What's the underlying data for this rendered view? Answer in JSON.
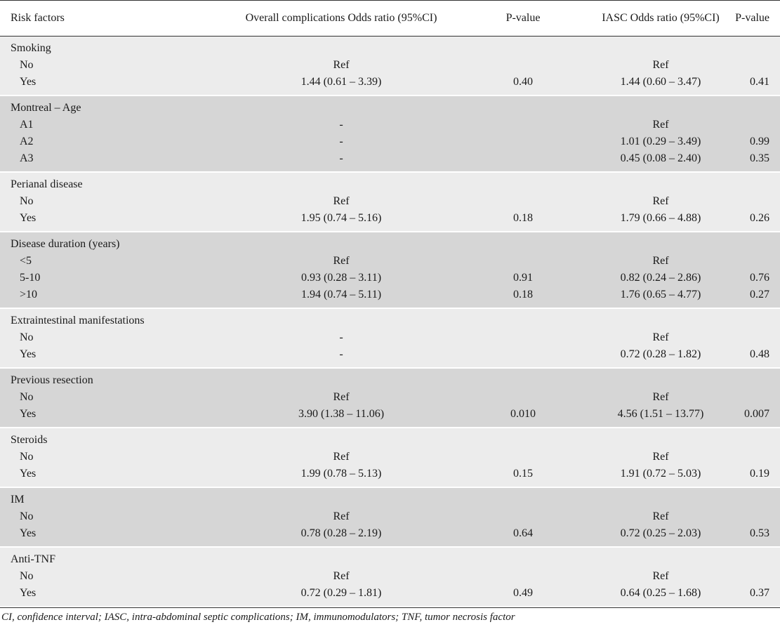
{
  "headers": {
    "risk_factors": "Risk factors",
    "overall_or": "Overall complications Odds ratio (95%CI)",
    "p_value_1": "P-value",
    "iasc_or": "IASC Odds ratio (95%CI)",
    "p_value_2": "P-value"
  },
  "groups": [
    {
      "label": "Smoking",
      "rows": [
        {
          "label": "No",
          "or1": "Ref",
          "p1": "",
          "or2": "Ref",
          "p2": ""
        },
        {
          "label": "Yes",
          "or1": "1.44 (0.61 – 3.39)",
          "p1": "0.40",
          "or2": "1.44 (0.60 – 3.47)",
          "p2": "0.41"
        }
      ]
    },
    {
      "label": "Montreal – Age",
      "rows": [
        {
          "label": "A1",
          "or1": "-",
          "p1": "",
          "or2": "Ref",
          "p2": ""
        },
        {
          "label": "A2",
          "or1": "-",
          "p1": "",
          "or2": "1.01 (0.29 – 3.49)",
          "p2": "0.99"
        },
        {
          "label": "A3",
          "or1": "-",
          "p1": "",
          "or2": "0.45 (0.08 – 2.40)",
          "p2": "0.35"
        }
      ]
    },
    {
      "label": "Perianal disease",
      "rows": [
        {
          "label": "No",
          "or1": "Ref",
          "p1": "",
          "or2": "Ref",
          "p2": ""
        },
        {
          "label": "Yes",
          "or1": "1.95 (0.74 – 5.16)",
          "p1": "0.18",
          "or2": "1.79 (0.66 – 4.88)",
          "p2": "0.26"
        }
      ]
    },
    {
      "label": "Disease duration (years)",
      "rows": [
        {
          "label": "<5",
          "or1": "Ref",
          "p1": "",
          "or2": "Ref",
          "p2": ""
        },
        {
          "label": "5-10",
          "or1": "0.93 (0.28 – 3.11)",
          "p1": "0.91",
          "or2": "0.82 (0.24 – 2.86)",
          "p2": "0.76"
        },
        {
          "label": ">10",
          "or1": "1.94 (0.74 – 5.11)",
          "p1": "0.18",
          "or2": "1.76 (0.65 – 4.77)",
          "p2": "0.27"
        }
      ]
    },
    {
      "label": "Extraintestinal manifestations",
      "rows": [
        {
          "label": "No",
          "or1": "-",
          "p1": "",
          "or2": "Ref",
          "p2": ""
        },
        {
          "label": "Yes",
          "or1": "-",
          "p1": "",
          "or2": "0.72 (0.28 – 1.82)",
          "p2": "0.48"
        }
      ]
    },
    {
      "label": "Previous resection",
      "rows": [
        {
          "label": "No",
          "or1": "Ref",
          "p1": "",
          "or2": "Ref",
          "p2": ""
        },
        {
          "label": "Yes",
          "or1": "3.90 (1.38 – 11.06)",
          "p1": "0.010",
          "or2": "4.56 (1.51 – 13.77)",
          "p2": "0.007"
        }
      ]
    },
    {
      "label": "Steroids",
      "rows": [
        {
          "label": "No",
          "or1": "Ref",
          "p1": "",
          "or2": "Ref",
          "p2": ""
        },
        {
          "label": "Yes",
          "or1": "1.99 (0.78 – 5.13)",
          "p1": "0.15",
          "or2": "1.91 (0.72 – 5.03)",
          "p2": "0.19"
        }
      ]
    },
    {
      "label": "IM",
      "rows": [
        {
          "label": "No",
          "or1": "Ref",
          "p1": "",
          "or2": "Ref",
          "p2": ""
        },
        {
          "label": "Yes",
          "or1": "0.78 (0.28 – 2.19)",
          "p1": "0.64",
          "or2": "0.72 (0.25 – 2.03)",
          "p2": "0.53"
        }
      ]
    },
    {
      "label": "Anti-TNF",
      "rows": [
        {
          "label": "No",
          "or1": "Ref",
          "p1": "",
          "or2": "Ref",
          "p2": ""
        },
        {
          "label": "Yes",
          "or1": "0.72 (0.29 – 1.81)",
          "p1": "0.49",
          "or2": "0.64 (0.25 – 1.68)",
          "p2": "0.37"
        }
      ]
    }
  ],
  "footnote": "CI, confidence interval; IASC, intra-abdominal septic complications; IM, immunomodulators; TNF, tumor necrosis factor"
}
